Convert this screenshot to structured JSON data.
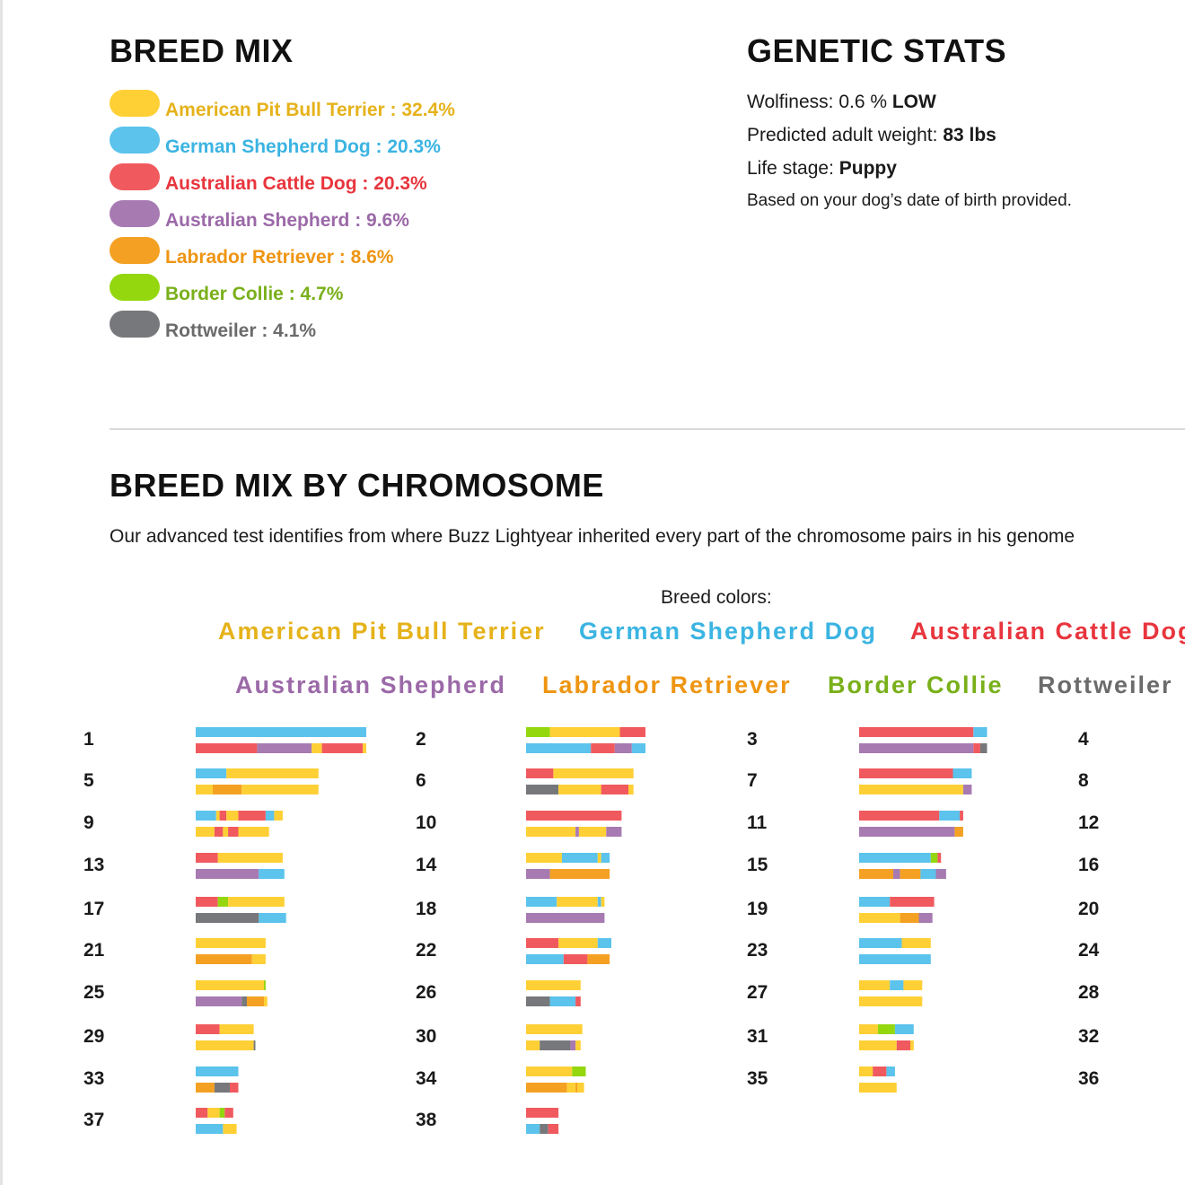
{
  "breed_mix": {
    "title": "BREED MIX",
    "items": [
      {
        "label": "American Pit Bull Terrier : 32.4%",
        "color": "#FFD035",
        "text_color": "#E5B21A",
        "percent": 32.4
      },
      {
        "label": "German Shepherd Dog : 20.3%",
        "color": "#5BC3EC",
        "text_color": "#3BB4E2",
        "percent": 20.3
      },
      {
        "label": "Australian Cattle Dog : 20.3%",
        "color": "#F05A5E",
        "text_color": "#E8353D",
        "percent": 20.3
      },
      {
        "label": "Australian Shepherd : 9.6%",
        "color": "#A77AB2",
        "text_color": "#9B69A8",
        "percent": 9.6
      },
      {
        "label": "Labrador Retriever : 8.6%",
        "color": "#F4A123",
        "text_color": "#EE9512",
        "percent": 8.6
      },
      {
        "label": "Border Collie : 4.7%",
        "color": "#94D70F",
        "text_color": "#79B01A",
        "percent": 4.7
      },
      {
        "label": "Rottweiler : 4.1%",
        "color": "#77787B",
        "text_color": "#6B6B6B",
        "percent": 4.1
      }
    ]
  },
  "genetic_stats": {
    "title": "GENETIC STATS",
    "wolfiness_label": "Wolfiness: 0.6 %",
    "wolfiness_level": "LOW",
    "weight_label": "Predicted adult weight:",
    "weight_value": "83 lbs",
    "life_stage_label": "Life stage:",
    "life_stage_value": "Puppy",
    "note": "Based on your dog’s date of birth provided."
  },
  "chromosome_section": {
    "title": "BREED MIX BY CHROMOSOME",
    "intro": "Our advanced test identifies from where Buzz Lightyear inherited every part of the chromosome pairs in his genome",
    "breed_colors_label": "Breed colors:",
    "legend": [
      "American Pit Bull Terrier",
      "German Shepherd Dog",
      "Australian Cattle Dog",
      "Australian Shepherd",
      "Labrador Retriever",
      "Border Collie",
      "Rottweiler"
    ]
  },
  "chart_data": {
    "type": "bar",
    "title": "BREED MIX BY CHROMOSOME",
    "breed_codes": {
      "P": "American Pit Bull Terrier",
      "G": "German Shepherd Dog",
      "C": "Australian Cattle Dog",
      "S": "Australian Shepherd",
      "L": "Labrador Retriever",
      "B": "Border Collie",
      "R": "Rottweiler"
    },
    "colors": {
      "P": "#FFD035",
      "G": "#5BC3EC",
      "C": "#F05A5E",
      "S": "#A77AB2",
      "L": "#F4A123",
      "B": "#94D70F",
      "R": "#77787B"
    },
    "units": "relative chromosome length (longest = 100)",
    "chromosomes": [
      {
        "label": "1",
        "strands": [
          [
            [
              "G",
              100
            ]
          ],
          [
            [
              "C",
              36
            ],
            [
              "S",
              32
            ],
            [
              "P",
              6
            ],
            [
              "C",
              24
            ],
            [
              "P",
              2
            ]
          ]
        ]
      },
      {
        "label": "2",
        "strands": [
          [
            [
              "B",
              14
            ],
            [
              "P",
              41
            ],
            [
              "C",
              15
            ]
          ],
          [
            [
              "G",
              38
            ],
            [
              "C",
              14
            ],
            [
              "S",
              10
            ],
            [
              "G",
              8
            ]
          ]
        ]
      },
      {
        "label": "3",
        "strands": [
          [
            [
              "C",
              67
            ],
            [
              "G",
              8
            ]
          ],
          [
            [
              "S",
              67
            ],
            [
              "C",
              4
            ],
            [
              "R",
              4
            ]
          ]
        ]
      },
      {
        "label": "4",
        "strands": [
          [],
          []
        ]
      },
      {
        "label": "5",
        "strands": [
          [
            [
              "G",
              18
            ],
            [
              "P",
              54
            ]
          ],
          [
            [
              "P",
              10
            ],
            [
              "L",
              17
            ],
            [
              "P",
              45
            ]
          ]
        ]
      },
      {
        "label": "6",
        "strands": [
          [
            [
              "C",
              16
            ],
            [
              "P",
              47
            ]
          ],
          [
            [
              "R",
              19
            ],
            [
              "P",
              25
            ],
            [
              "C",
              16
            ],
            [
              "P",
              3
            ]
          ]
        ]
      },
      {
        "label": "7",
        "strands": [
          [
            [
              "C",
              55
            ],
            [
              "G",
              11
            ]
          ],
          [
            [
              "P",
              61
            ],
            [
              "S",
              5
            ]
          ]
        ]
      },
      {
        "label": "8",
        "strands": [
          [],
          []
        ]
      },
      {
        "label": "9",
        "strands": [
          [
            [
              "G",
              12
            ],
            [
              "P",
              2
            ],
            [
              "C",
              4
            ],
            [
              "P",
              7
            ],
            [
              "C",
              16
            ],
            [
              "G",
              5
            ],
            [
              "P",
              5
            ]
          ],
          [
            [
              "P",
              11
            ],
            [
              "C",
              5
            ],
            [
              "P",
              3
            ],
            [
              "C",
              6
            ],
            [
              "P",
              18
            ]
          ]
        ]
      },
      {
        "label": "10",
        "strands": [
          [
            [
              "C",
              56
            ]
          ],
          [
            [
              "P",
              29
            ],
            [
              "S",
              2
            ],
            [
              "P",
              16
            ],
            [
              "S",
              9
            ]
          ]
        ]
      },
      {
        "label": "11",
        "strands": [
          [
            [
              "C",
              47
            ],
            [
              "G",
              12
            ],
            [
              "C",
              2
            ]
          ],
          [
            [
              "S",
              56
            ],
            [
              "L",
              5
            ]
          ]
        ]
      },
      {
        "label": "12",
        "strands": [
          [],
          []
        ]
      },
      {
        "label": "13",
        "strands": [
          [
            [
              "C",
              13
            ],
            [
              "P",
              38
            ]
          ],
          [
            [
              "S",
              37
            ],
            [
              "G",
              15
            ]
          ]
        ]
      },
      {
        "label": "14",
        "strands": [
          [
            [
              "P",
              21
            ],
            [
              "G",
              21
            ],
            [
              "P",
              2
            ],
            [
              "G",
              5
            ]
          ],
          [
            [
              "S",
              14
            ],
            [
              "L",
              35
            ]
          ]
        ]
      },
      {
        "label": "15",
        "strands": [
          [
            [
              "G",
              42
            ],
            [
              "B",
              4
            ],
            [
              "C",
              2
            ]
          ],
          [
            [
              "L",
              20
            ],
            [
              "S",
              4
            ],
            [
              "L",
              12
            ],
            [
              "G",
              9
            ],
            [
              "S",
              6
            ]
          ]
        ]
      },
      {
        "label": "16",
        "strands": [
          [],
          []
        ]
      },
      {
        "label": "17",
        "strands": [
          [
            [
              "C",
              13
            ],
            [
              "B",
              6
            ],
            [
              "P",
              33
            ]
          ],
          [
            [
              "R",
              37
            ],
            [
              "G",
              16
            ]
          ]
        ]
      },
      {
        "label": "18",
        "strands": [
          [
            [
              "G",
              18
            ],
            [
              "P",
              24
            ],
            [
              "G",
              2
            ],
            [
              "P",
              2
            ]
          ],
          [
            [
              "S",
              46
            ]
          ]
        ]
      },
      {
        "label": "19",
        "strands": [
          [
            [
              "G",
              18
            ],
            [
              "C",
              26
            ]
          ],
          [
            [
              "P",
              24
            ],
            [
              "L",
              11
            ],
            [
              "S",
              8
            ]
          ]
        ]
      },
      {
        "label": "20",
        "strands": [
          [],
          []
        ]
      },
      {
        "label": "21",
        "strands": [
          [
            [
              "P",
              41
            ]
          ],
          [
            [
              "L",
              33
            ],
            [
              "P",
              8
            ]
          ]
        ]
      },
      {
        "label": "22",
        "strands": [
          [
            [
              "C",
              19
            ],
            [
              "P",
              23
            ],
            [
              "G",
              8
            ]
          ],
          [
            [
              "G",
              22
            ],
            [
              "C",
              14
            ],
            [
              "L",
              13
            ]
          ]
        ]
      },
      {
        "label": "23",
        "strands": [
          [
            [
              "G",
              25
            ],
            [
              "P",
              17
            ]
          ],
          [
            [
              "G",
              42
            ]
          ]
        ]
      },
      {
        "label": "24",
        "strands": [
          [],
          []
        ]
      },
      {
        "label": "25",
        "strands": [
          [
            [
              "P",
              40
            ],
            [
              "B",
              1
            ]
          ],
          [
            [
              "S",
              27
            ],
            [
              "R",
              3
            ],
            [
              "L",
              10
            ],
            [
              "P",
              2
            ]
          ]
        ]
      },
      {
        "label": "26",
        "strands": [
          [
            [
              "P",
              32
            ]
          ],
          [
            [
              "R",
              14
            ],
            [
              "G",
              15
            ],
            [
              "C",
              3
            ]
          ]
        ]
      },
      {
        "label": "27",
        "strands": [
          [
            [
              "P",
              18
            ],
            [
              "G",
              8
            ],
            [
              "P",
              11
            ]
          ],
          [
            [
              "P",
              37
            ]
          ]
        ]
      },
      {
        "label": "28",
        "strands": [
          [],
          []
        ]
      },
      {
        "label": "29",
        "strands": [
          [
            [
              "C",
              14
            ],
            [
              "P",
              20
            ]
          ],
          [
            [
              "P",
              34
            ],
            [
              "R",
              1
            ]
          ]
        ]
      },
      {
        "label": "30",
        "strands": [
          [
            [
              "P",
              33
            ]
          ],
          [
            [
              "P",
              8
            ],
            [
              "R",
              18
            ],
            [
              "S",
              3
            ],
            [
              "P",
              3
            ]
          ]
        ]
      },
      {
        "label": "31",
        "strands": [
          [
            [
              "P",
              11
            ],
            [
              "B",
              10
            ],
            [
              "G",
              11
            ]
          ],
          [
            [
              "P",
              22
            ],
            [
              "C",
              8
            ],
            [
              "P",
              2
            ]
          ]
        ]
      },
      {
        "label": "32",
        "strands": [
          [],
          []
        ]
      },
      {
        "label": "33",
        "strands": [
          [
            [
              "G",
              25
            ]
          ],
          [
            [
              "L",
              11
            ],
            [
              "R",
              9
            ],
            [
              "C",
              5
            ]
          ]
        ]
      },
      {
        "label": "34",
        "strands": [
          [
            [
              "P",
              27
            ],
            [
              "B",
              8
            ]
          ],
          [
            [
              "L",
              24
            ],
            [
              "P",
              5
            ],
            [
              "L",
              1
            ],
            [
              "P",
              4
            ]
          ]
        ]
      },
      {
        "label": "35",
        "strands": [
          [
            [
              "P",
              8
            ],
            [
              "C",
              8
            ],
            [
              "G",
              5
            ]
          ],
          [
            [
              "P",
              22
            ]
          ]
        ]
      },
      {
        "label": "36",
        "strands": [
          [],
          []
        ]
      },
      {
        "label": "37",
        "strands": [
          [
            [
              "C",
              7
            ],
            [
              "P",
              7
            ],
            [
              "B",
              3
            ],
            [
              "C",
              5
            ]
          ],
          [
            [
              "G",
              16
            ],
            [
              "P",
              8
            ]
          ]
        ]
      },
      {
        "label": "38",
        "strands": [
          [
            [
              "C",
              19
            ]
          ],
          [
            [
              "G",
              8
            ],
            [
              "R",
              5
            ],
            [
              "C",
              6
            ]
          ]
        ]
      }
    ]
  }
}
